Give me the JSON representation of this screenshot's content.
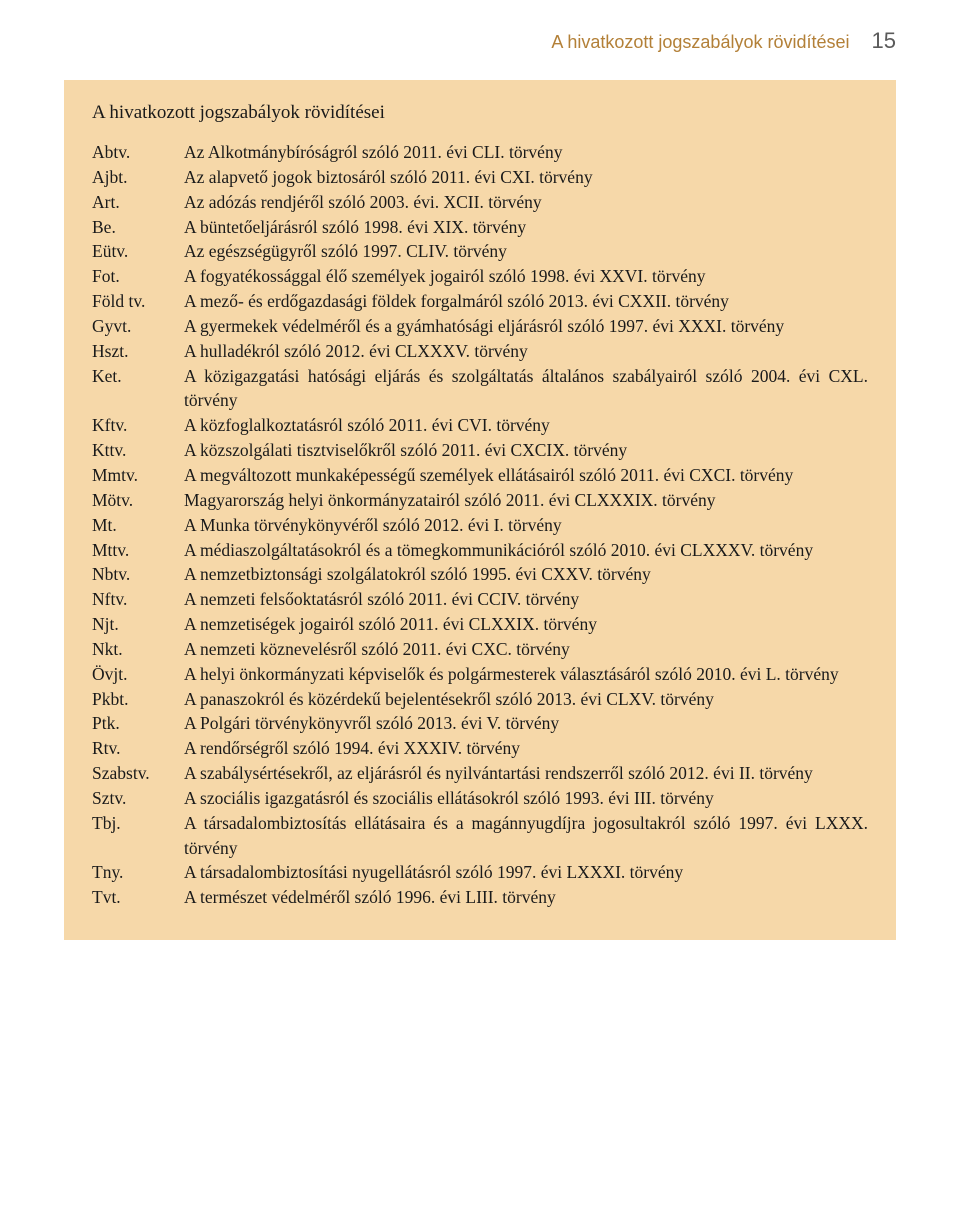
{
  "header": {
    "title": "A hivatkozott jogszabályok rövidítései",
    "page_number": "15"
  },
  "section_title": "A hivatkozott jogszabályok rövidítései",
  "entries": [
    {
      "abbr": "Abtv.",
      "desc": "Az Alkotmánybíróságról szóló 2011. évi CLI. törvény"
    },
    {
      "abbr": "Ajbt.",
      "desc": "Az alapvető jogok biztosáról szóló 2011. évi CXI. törvény"
    },
    {
      "abbr": "Art.",
      "desc": "Az adózás rendjéről szóló 2003. évi. XCII. törvény"
    },
    {
      "abbr": "Be.",
      "desc": "A büntetőeljárásról szóló 1998. évi XIX. törvény"
    },
    {
      "abbr": "Eütv.",
      "desc": "Az egészségügyről szóló 1997. CLIV. törvény"
    },
    {
      "abbr": "Fot.",
      "desc": "A fogyatékossággal élő személyek jogairól szóló 1998. évi XXVI. törvény"
    },
    {
      "abbr": "Föld tv.",
      "desc": "A mező- és erdőgazdasági földek forgalmáról szóló 2013. évi CXXII. törvény"
    },
    {
      "abbr": "Gyvt.",
      "desc": "A gyermekek védelméről és a gyámhatósági eljárásról szóló 1997. évi XXXI. törvény"
    },
    {
      "abbr": "Hszt.",
      "desc": "A hulladékról szóló 2012. évi CLXXXV. törvény"
    },
    {
      "abbr": "Ket.",
      "desc": "A közigazgatási hatósági eljárás és szolgáltatás általános szabályairól szóló 2004. évi CXL. törvény"
    },
    {
      "abbr": "Kftv.",
      "desc": "A közfoglalkoztatásról szóló 2011. évi CVI. törvény"
    },
    {
      "abbr": "Kttv.",
      "desc": "A közszolgálati tisztviselőkről szóló 2011. évi CXCIX. törvény"
    },
    {
      "abbr": "Mmtv.",
      "desc": "A megváltozott munkaképességű személyek ellátásairól szóló 2011. évi CXCI. törvény"
    },
    {
      "abbr": "Mötv.",
      "desc": "Magyarország helyi önkormányzatairól szóló 2011. évi CLXXXIX. törvény"
    },
    {
      "abbr": "Mt.",
      "desc": "A Munka törvénykönyvéről szóló 2012. évi I. törvény"
    },
    {
      "abbr": "Mttv.",
      "desc": "A médiaszolgáltatásokról és a tömegkommunikációról szóló 2010. évi CLXXXV. törvény"
    },
    {
      "abbr": "Nbtv.",
      "desc": "A nemzetbiztonsági szolgálatokról szóló 1995. évi CXXV. törvény"
    },
    {
      "abbr": "Nftv.",
      "desc": "A nemzeti felsőoktatásról szóló 2011. évi CCIV. törvény"
    },
    {
      "abbr": "Njt.",
      "desc": "A nemzetiségek jogairól szóló 2011. évi CLXXIX. törvény"
    },
    {
      "abbr": "Nkt.",
      "desc": "A nemzeti köznevelésről szóló 2011. évi CXC. törvény"
    },
    {
      "abbr": "Övjt.",
      "desc": "A helyi önkormányzati képviselők és polgármesterek választásáról szóló 2010. évi L. törvény"
    },
    {
      "abbr": "Pkbt.",
      "desc": "A panaszokról és közérdekű bejelentésekről szóló 2013. évi CLXV. törvény"
    },
    {
      "abbr": "Ptk.",
      "desc": "A Polgári törvénykönyvről szóló 2013. évi V. törvény"
    },
    {
      "abbr": "Rtv.",
      "desc": "A rendőrségről szóló 1994. évi XXXIV. törvény"
    },
    {
      "abbr": "Szabstv.",
      "desc": "A szabálysértésekről, az eljárásról és nyilvántartási rendszerről szóló 2012. évi II. törvény"
    },
    {
      "abbr": "Sztv.",
      "desc": "A szociális igazgatásról és szociális ellátásokról szóló 1993. évi III. törvény"
    },
    {
      "abbr": "Tbj.",
      "desc": "A társadalombiztosítás ellátásaira és a magánnyugdíjra jogosultakról szóló 1997. évi LXXX. törvény"
    },
    {
      "abbr": "Tny.",
      "desc": "A társadalombiztosítási nyugellátásról szóló 1997. évi LXXXI. törvény"
    },
    {
      "abbr": "Tvt.",
      "desc": "A természet védelméről szóló 1996. évi LIII. törvény"
    }
  ],
  "colors": {
    "background_box": "#f6d8a9",
    "header_accent": "#b38038",
    "page_bg": "#ffffff",
    "text": "#1a1a1a"
  },
  "typography": {
    "body_font": "Georgia",
    "body_size_pt": 13,
    "header_size_pt": 14
  }
}
